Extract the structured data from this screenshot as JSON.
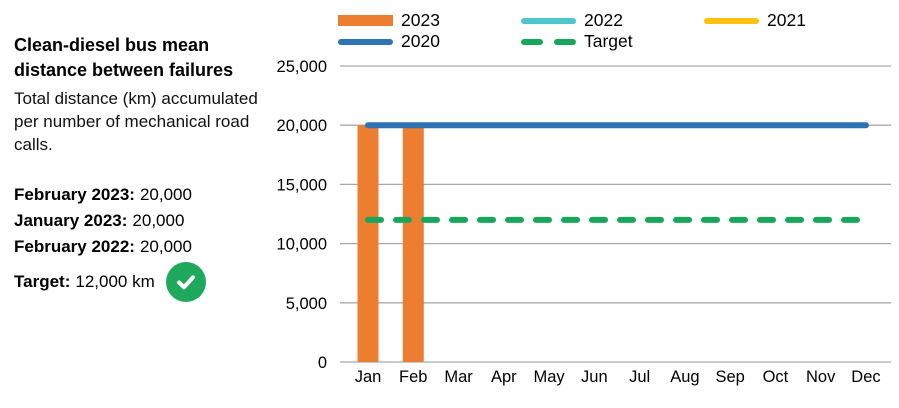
{
  "panel": {
    "title": "Clean-diesel bus mean distance between failures",
    "subtitle": "Total distance (km) accumulated per number of mechanical road calls.",
    "stats": [
      {
        "label": "February 2023:",
        "value": "20,000"
      },
      {
        "label": "January 2023:",
        "value": "20,000"
      },
      {
        "label": "February 2022:",
        "value": "20,000"
      }
    ],
    "target": {
      "label": "Target:",
      "value": "12,000 km"
    },
    "target_met_icon": "check-circle",
    "target_met_color": "#1FA95C"
  },
  "legend": {
    "items": [
      {
        "label": "2023",
        "swatch": "bar",
        "color": "#ED7D31"
      },
      {
        "label": "2022",
        "swatch": "line",
        "color": "#4BC7CD"
      },
      {
        "label": "2021",
        "swatch": "line",
        "color": "#FCC20D"
      },
      {
        "label": "2020",
        "swatch": "line",
        "color": "#2E74B5"
      },
      {
        "label": "Target",
        "swatch": "dash",
        "color": "#17A75B"
      }
    ]
  },
  "colors": {
    "gridline": "#A9A9A9",
    "axis_text": "#000000",
    "bar_2023": "#ED7D31",
    "line_2020": "#2E74B5",
    "line_2022": "#4BC7CD",
    "line_2021": "#FCC20D",
    "target_green": "#17A75B"
  },
  "chart_data": {
    "type": "bar",
    "title": "Clean-diesel bus mean distance between failures",
    "xlabel": "",
    "ylabel": "",
    "categories": [
      "Jan",
      "Feb",
      "Mar",
      "Apr",
      "May",
      "Jun",
      "Jul",
      "Aug",
      "Sep",
      "Oct",
      "Nov",
      "Dec"
    ],
    "series": [
      {
        "name": "2023",
        "type": "bar",
        "color": "#ED7D31",
        "values": [
          20000,
          20000,
          null,
          null,
          null,
          null,
          null,
          null,
          null,
          null,
          null,
          null
        ]
      },
      {
        "name": "2022",
        "type": "line",
        "color": "#4BC7CD",
        "values": null
      },
      {
        "name": "2021",
        "type": "line",
        "color": "#FCC20D",
        "values": null
      },
      {
        "name": "2020",
        "type": "line",
        "color": "#2E74B5",
        "values": [
          20000,
          20000,
          20000,
          20000,
          20000,
          20000,
          20000,
          20000,
          20000,
          20000,
          20000,
          20000
        ]
      },
      {
        "name": "Target",
        "type": "dashed-line",
        "color": "#17A75B",
        "values": [
          12000,
          12000,
          12000,
          12000,
          12000,
          12000,
          12000,
          12000,
          12000,
          12000,
          12000,
          12000
        ]
      }
    ],
    "ylim": [
      0,
      25000
    ],
    "y_ticks": [
      {
        "value": 0,
        "label": "0"
      },
      {
        "value": 5000,
        "label": "5,000"
      },
      {
        "value": 10000,
        "label": "10,000"
      },
      {
        "value": 15000,
        "label": "15,000"
      },
      {
        "value": 20000,
        "label": "20,000"
      },
      {
        "value": 25000,
        "label": "25,000"
      }
    ],
    "grid": "horizontal",
    "legend_position": "top"
  }
}
